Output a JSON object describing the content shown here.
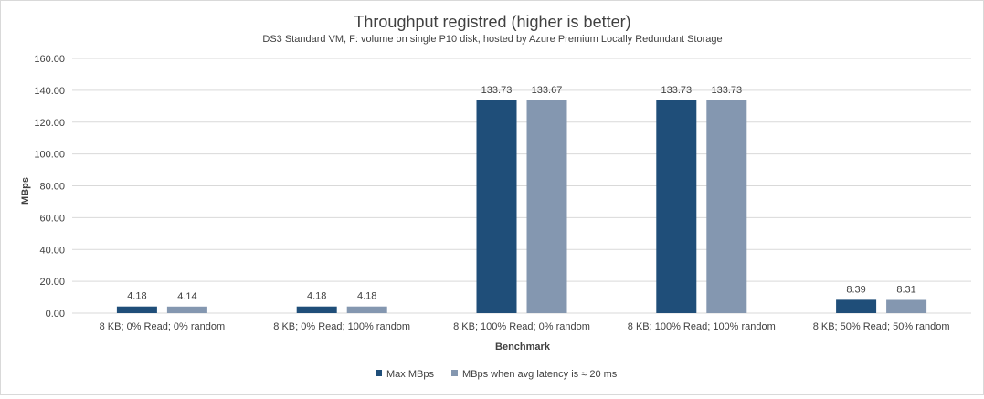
{
  "chart_data": {
    "type": "bar",
    "title": "Throughput registred (higher is better)",
    "subtitle": "DS3 Standard VM, F: volume on single P10 disk, hosted by Azure Premium Locally Redundant Storage",
    "xlabel": "Benchmark",
    "ylabel": "MBps",
    "ylim": [
      0,
      160
    ],
    "yticks": [
      "0.00",
      "20.00",
      "40.00",
      "60.00",
      "80.00",
      "100.00",
      "120.00",
      "140.00",
      "160.00"
    ],
    "grid": true,
    "legend_position": "bottom",
    "categories": [
      "8 KB; 0% Read; 0% random",
      "8 KB; 0% Read; 100% random",
      "8 KB; 100% Read; 0% random",
      "8 KB; 100% Read; 100% random",
      "8 KB; 50% Read; 50% random"
    ],
    "series": [
      {
        "name": "Max MBps",
        "color": "#1f4e79",
        "values": [
          4.18,
          4.18,
          133.73,
          133.73,
          8.39
        ],
        "labels": [
          "4.18",
          "4.18",
          "133.73",
          "133.73",
          "8.39"
        ]
      },
      {
        "name": "MBps when avg latency is ≈ 20 ms",
        "color": "#8497b0",
        "values": [
          4.14,
          4.18,
          133.67,
          133.73,
          8.31
        ],
        "labels": [
          "4.14",
          "4.18",
          "133.67",
          "133.73",
          "8.31"
        ]
      }
    ]
  }
}
